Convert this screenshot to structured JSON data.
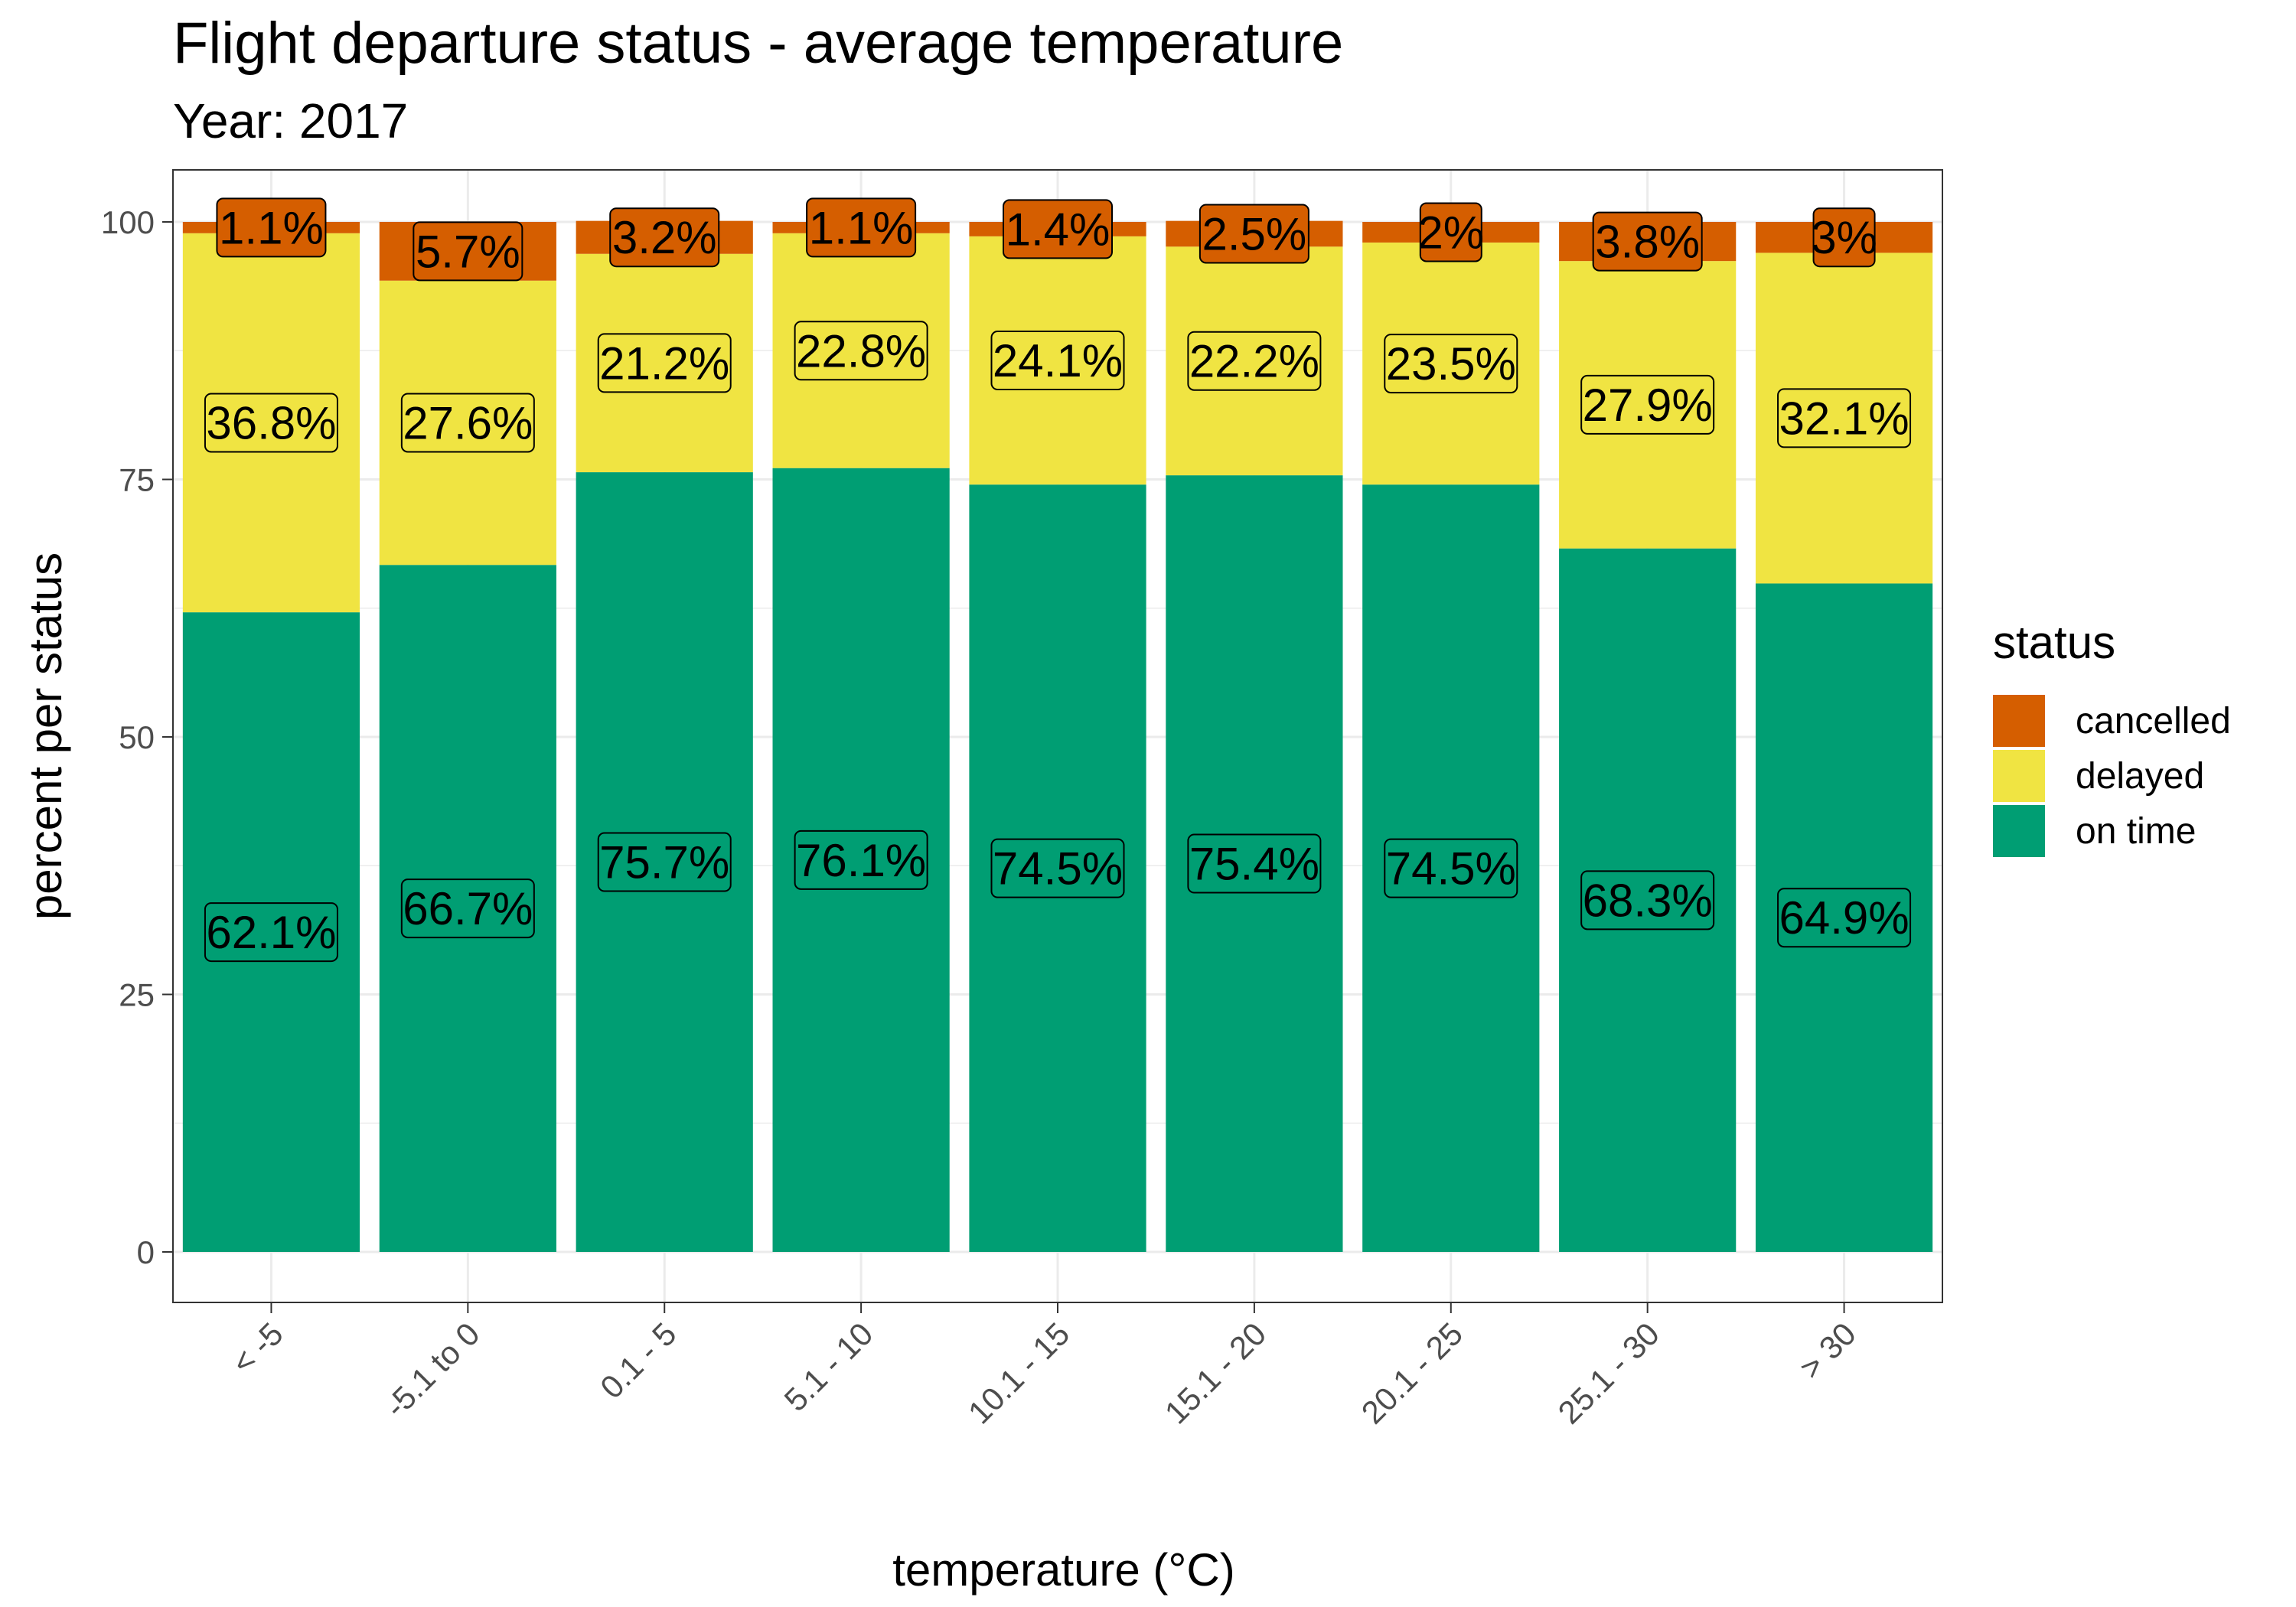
{
  "chart_data": {
    "type": "bar",
    "stacked": true,
    "title": "Flight departure status - average temperature",
    "subtitle": "Year: 2017",
    "xlabel": "temperature (°C)",
    "ylabel": "percent per status",
    "ylim": [
      0,
      105
    ],
    "yticks": [
      0,
      25,
      50,
      75,
      100
    ],
    "grid": true,
    "legend": {
      "title": "status",
      "position": "right"
    },
    "categories": [
      "< -5",
      "-5.1 to 0",
      "0.1 - 5",
      "5.1 - 10",
      "10.1 - 15",
      "15.1 - 20",
      "20.1 - 25",
      "25.1 - 30",
      "> 30"
    ],
    "series": [
      {
        "name": "on time",
        "color": "#009E73",
        "values": [
          62.1,
          66.7,
          75.7,
          76.1,
          74.5,
          75.4,
          74.5,
          68.3,
          64.9
        ],
        "labels": [
          "62.1%",
          "66.7%",
          "75.7%",
          "76.1%",
          "74.5%",
          "75.4%",
          "74.5%",
          "68.3%",
          "64.9%"
        ]
      },
      {
        "name": "delayed",
        "color": "#F0E442",
        "values": [
          36.8,
          27.6,
          21.2,
          22.8,
          24.1,
          22.2,
          23.5,
          27.9,
          32.1
        ],
        "labels": [
          "36.8%",
          "27.6%",
          "21.2%",
          "22.8%",
          "24.1%",
          "22.2%",
          "23.5%",
          "27.9%",
          "32.1%"
        ]
      },
      {
        "name": "cancelled",
        "color": "#D55E00",
        "values": [
          1.1,
          5.7,
          3.2,
          1.1,
          1.4,
          2.5,
          2,
          3.8,
          3
        ],
        "labels": [
          "1.1%",
          "5.7%",
          "3.2%",
          "1.1%",
          "1.4%",
          "2.5%",
          "2%",
          "3.8%",
          "3%"
        ]
      }
    ]
  }
}
